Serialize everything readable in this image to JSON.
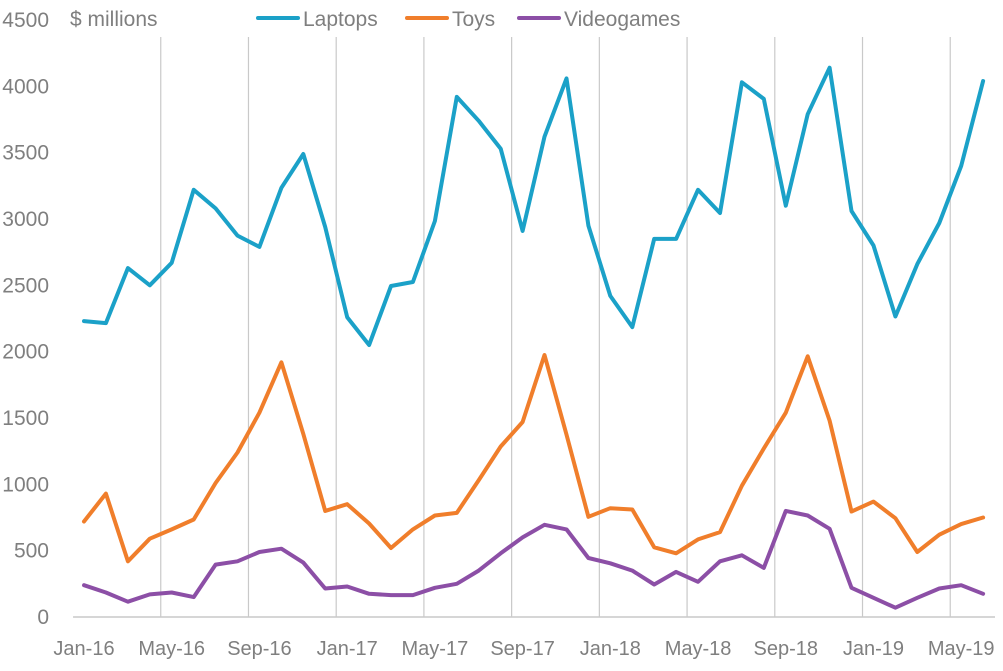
{
  "chart_data": {
    "type": "line",
    "title": "",
    "xlabel": "",
    "ylabel": "$ millions",
    "ylim": [
      0,
      4500
    ],
    "yticks": [
      0,
      500,
      1000,
      1500,
      2000,
      2500,
      3000,
      3500,
      4000,
      4500
    ],
    "xtick_labels": [
      "Jan-16",
      "May-16",
      "Sep-16",
      "Jan-17",
      "May-17",
      "Sep-17",
      "Jan-18",
      "May-18",
      "Sep-18",
      "Jan-19",
      "May-19"
    ],
    "grid": "vertical",
    "legend_position": "top",
    "x": [
      "Jan-16",
      "Feb-16",
      "Mar-16",
      "Apr-16",
      "May-16",
      "Jun-16",
      "Jul-16",
      "Aug-16",
      "Sep-16",
      "Oct-16",
      "Nov-16",
      "Dec-16",
      "Jan-17",
      "Feb-17",
      "Mar-17",
      "Apr-17",
      "May-17",
      "Jun-17",
      "Jul-17",
      "Aug-17",
      "Sep-17",
      "Oct-17",
      "Nov-17",
      "Dec-17",
      "Jan-18",
      "Feb-18",
      "Mar-18",
      "Apr-18",
      "May-18",
      "Jun-18",
      "Jul-18",
      "Aug-18",
      "Sep-18",
      "Oct-18",
      "Nov-18",
      "Dec-18",
      "Jan-19",
      "Feb-19",
      "Mar-19",
      "Apr-19",
      "May-19",
      "Jun-19"
    ],
    "series": [
      {
        "name": "Laptops",
        "color": "#1ba1c8",
        "values": [
          2230,
          2215,
          2630,
          2500,
          2670,
          3220,
          3080,
          2875,
          2790,
          3235,
          3490,
          2940,
          2260,
          2050,
          2495,
          2525,
          2985,
          3920,
          3740,
          3530,
          2910,
          3620,
          4060,
          2950,
          2420,
          2185,
          2850,
          2850,
          3220,
          3045,
          4030,
          3905,
          3100,
          3790,
          4140,
          3060,
          2800,
          2265,
          2660,
          2970,
          3400,
          4040
        ]
      },
      {
        "name": "Toys",
        "color": "#f07e2b",
        "values": [
          720,
          930,
          420,
          590,
          660,
          735,
          1010,
          1240,
          1540,
          1920,
          1380,
          800,
          850,
          705,
          520,
          660,
          765,
          785,
          1030,
          1285,
          1470,
          1975,
          1375,
          755,
          820,
          810,
          525,
          480,
          585,
          640,
          990,
          1270,
          1540,
          1965,
          1480,
          795,
          870,
          745,
          490,
          620,
          700,
          750
        ]
      },
      {
        "name": "Videogames",
        "color": "#8c4fa6",
        "values": [
          240,
          185,
          115,
          170,
          185,
          150,
          395,
          420,
          490,
          515,
          410,
          215,
          230,
          175,
          165,
          165,
          220,
          250,
          350,
          480,
          600,
          695,
          660,
          445,
          405,
          350,
          245,
          340,
          265,
          420,
          465,
          370,
          800,
          765,
          665,
          220,
          145,
          70,
          145,
          215,
          240,
          175
        ]
      }
    ]
  }
}
